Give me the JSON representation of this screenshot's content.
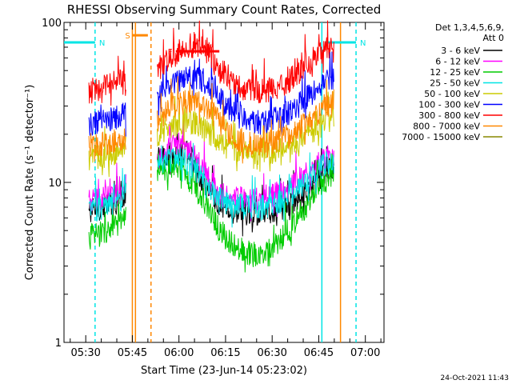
{
  "chart_data": {
    "type": "line",
    "title": "RHESSI Observing Summary Count Rates, Corrected",
    "xlabel": "Start Time (23-Jun-14 05:23:02)",
    "ylabel": "Corrected Count Rate (s⁻¹ detector⁻¹)",
    "y_scale": "log",
    "ylim": [
      1,
      100
    ],
    "y_ticks": [
      {
        "value": 1,
        "label": "1"
      },
      {
        "value": 10,
        "label": "10"
      },
      {
        "value": 100,
        "label": "100"
      }
    ],
    "xlim": [
      "05:23",
      "07:06"
    ],
    "x_ticks": [
      "05:30",
      "05:45",
      "06:00",
      "06:15",
      "06:30",
      "06:45",
      "07:00"
    ],
    "legend_header": [
      "Det 1,3,4,5,6,9,",
      "Att 0"
    ],
    "legend_position": "right",
    "series": [
      {
        "name": "3 - 6 keV",
        "color": "#000000",
        "segments": [
          [
            [
              "05:31",
              6.2
            ],
            [
              "05:35",
              6.6
            ],
            [
              "05:38",
              7.0
            ],
            [
              "05:41",
              7.5
            ],
            [
              "05:43",
              8.0
            ]
          ],
          [
            [
              "05:53",
              13
            ],
            [
              "05:56",
              14
            ],
            [
              "05:59",
              13.5
            ],
            [
              "06:02",
              15
            ],
            [
              "06:05",
              12.5
            ],
            [
              "06:08",
              9.0
            ],
            [
              "06:11",
              7.6
            ],
            [
              "06:14",
              6.8
            ],
            [
              "06:18",
              6.2
            ],
            [
              "06:22",
              6.0
            ],
            [
              "06:26",
              6.1
            ],
            [
              "06:30",
              6.3
            ],
            [
              "06:34",
              6.6
            ],
            [
              "06:38",
              7.3
            ],
            [
              "06:42",
              8.6
            ],
            [
              "06:46",
              10.5
            ],
            [
              "06:50",
              12.0
            ]
          ]
        ]
      },
      {
        "name": "6 - 12 keV",
        "color": "#ff00ff",
        "segments": [
          [
            [
              "05:31",
              7.2
            ],
            [
              "05:35",
              7.5
            ],
            [
              "05:38",
              7.9
            ],
            [
              "05:41",
              8.4
            ],
            [
              "05:43",
              9.0
            ]
          ],
          [
            [
              "05:53",
              12.5
            ],
            [
              "05:56",
              15
            ],
            [
              "05:59",
              16.5
            ],
            [
              "06:02",
              16
            ],
            [
              "06:05",
              13.5
            ],
            [
              "06:08",
              11.0
            ],
            [
              "06:11",
              9.0
            ],
            [
              "06:14",
              8.0
            ],
            [
              "06:18",
              7.5
            ],
            [
              "06:22",
              7.4
            ],
            [
              "06:26",
              7.5
            ],
            [
              "06:30",
              7.8
            ],
            [
              "06:34",
              8.5
            ],
            [
              "06:38",
              9.6
            ],
            [
              "06:42",
              11.2
            ],
            [
              "06:46",
              13.0
            ],
            [
              "06:50",
              14.0
            ]
          ]
        ]
      },
      {
        "name": "12 - 25 keV",
        "color": "#00cc00",
        "segments": [
          [
            [
              "05:31",
              4.3
            ],
            [
              "05:35",
              4.6
            ],
            [
              "05:38",
              4.9
            ],
            [
              "05:41",
              5.2
            ],
            [
              "05:43",
              5.6
            ]
          ],
          [
            [
              "05:53",
              10.5
            ],
            [
              "05:56",
              11.5
            ],
            [
              "05:59",
              12.0
            ],
            [
              "06:02",
              11.0
            ],
            [
              "06:05",
              9.0
            ],
            [
              "06:08",
              7.0
            ],
            [
              "06:11",
              5.5
            ],
            [
              "06:14",
              4.5
            ],
            [
              "06:18",
              3.8
            ],
            [
              "06:22",
              3.4
            ],
            [
              "06:26",
              3.4
            ],
            [
              "06:30",
              3.7
            ],
            [
              "06:34",
              4.4
            ],
            [
              "06:38",
              5.6
            ],
            [
              "06:42",
              7.2
            ],
            [
              "06:46",
              9.0
            ],
            [
              "06:50",
              10.5
            ]
          ]
        ]
      },
      {
        "name": "25 - 50 keV",
        "color": "#00e5e5",
        "segments": [
          [
            [
              "05:31",
              6.4
            ],
            [
              "05:35",
              6.6
            ],
            [
              "05:38",
              6.9
            ],
            [
              "05:41",
              7.3
            ],
            [
              "05:43",
              7.8
            ]
          ],
          [
            [
              "05:53",
              12.0
            ],
            [
              "05:56",
              13.0
            ],
            [
              "05:59",
              13.5
            ],
            [
              "06:02",
              13.0
            ],
            [
              "06:05",
              11.5
            ],
            [
              "06:08",
              9.5
            ],
            [
              "06:11",
              8.0
            ],
            [
              "06:14",
              7.2
            ],
            [
              "06:18",
              6.8
            ],
            [
              "06:22",
              6.6
            ],
            [
              "06:26",
              6.6
            ],
            [
              "06:30",
              6.8
            ],
            [
              "06:34",
              7.4
            ],
            [
              "06:38",
              8.5
            ],
            [
              "06:42",
              10.0
            ],
            [
              "06:46",
              12.0
            ],
            [
              "06:50",
              13.0
            ]
          ]
        ]
      },
      {
        "name": "50 - 100 keV",
        "color": "#cccc00",
        "segments": [
          [
            [
              "05:31",
              13.5
            ],
            [
              "05:35",
              13.8
            ],
            [
              "05:38",
              14.2
            ],
            [
              "05:41",
              14.7
            ],
            [
              "05:43",
              15.2
            ]
          ],
          [
            [
              "05:53",
              18.5
            ],
            [
              "05:56",
              20.5
            ],
            [
              "05:59",
              22.0
            ],
            [
              "06:02",
              23.0
            ],
            [
              "06:05",
              22.5
            ],
            [
              "06:08",
              20.5
            ],
            [
              "06:11",
              18.0
            ],
            [
              "06:14",
              16.0
            ],
            [
              "06:18",
              15.0
            ],
            [
              "06:22",
              14.6
            ],
            [
              "06:26",
              14.5
            ],
            [
              "06:30",
              14.8
            ],
            [
              "06:34",
              15.6
            ],
            [
              "06:38",
              17.0
            ],
            [
              "06:42",
              19.0
            ],
            [
              "06:46",
              21.5
            ],
            [
              "06:50",
              24.0
            ]
          ]
        ]
      },
      {
        "name": "100 - 300 keV",
        "color": "#0000ff",
        "segments": [
          [
            [
              "05:31",
              21.5
            ],
            [
              "05:35",
              22.5
            ],
            [
              "05:38",
              23.5
            ],
            [
              "05:41",
              24.5
            ],
            [
              "05:43",
              25.5
            ]
          ],
          [
            [
              "05:53",
              31.0
            ],
            [
              "05:56",
              36.0
            ],
            [
              "05:59",
              40.0
            ],
            [
              "06:02",
              43.0
            ],
            [
              "06:05",
              43.5
            ],
            [
              "06:08",
              41.0
            ],
            [
              "06:11",
              36.0
            ],
            [
              "06:14",
              30.0
            ],
            [
              "06:18",
              25.5
            ],
            [
              "06:22",
              23.0
            ],
            [
              "06:26",
              22.5
            ],
            [
              "06:30",
              23.0
            ],
            [
              "06:34",
              25.0
            ],
            [
              "06:38",
              28.0
            ],
            [
              "06:42",
              33.0
            ],
            [
              "06:46",
              38.0
            ],
            [
              "06:50",
              43.0
            ]
          ]
        ]
      },
      {
        "name": "300 - 800 keV",
        "color": "#ff0000",
        "segments": [
          [
            [
              "05:31",
              35.0
            ],
            [
              "05:35",
              36.5
            ],
            [
              "05:38",
              38.5
            ],
            [
              "05:41",
              41.0
            ],
            [
              "05:43",
              43.0
            ]
          ],
          [
            [
              "05:53",
              44.0
            ],
            [
              "05:56",
              53.0
            ],
            [
              "05:59",
              60.0
            ],
            [
              "06:02",
              65.0
            ],
            [
              "06:05",
              67.0
            ],
            [
              "06:08",
              64.0
            ],
            [
              "06:11",
              56.0
            ],
            [
              "06:14",
              47.0
            ],
            [
              "06:18",
              39.0
            ],
            [
              "06:22",
              35.5
            ],
            [
              "06:26",
              35.0
            ],
            [
              "06:30",
              36.0
            ],
            [
              "06:34",
              39.0
            ],
            [
              "06:38",
              45.0
            ],
            [
              "06:42",
              53.0
            ],
            [
              "06:46",
              62.0
            ],
            [
              "06:50",
              72.0
            ]
          ]
        ]
      },
      {
        "name": "800 - 7000 keV",
        "color": "#ff8800",
        "segments": [
          [
            [
              "05:31",
              16.0
            ],
            [
              "05:35",
              16.3
            ],
            [
              "05:38",
              16.8
            ],
            [
              "05:41",
              17.4
            ],
            [
              "05:43",
              18.0
            ]
          ],
          [
            [
              "05:53",
              23.0
            ],
            [
              "05:56",
              26.0
            ],
            [
              "05:59",
              28.5
            ],
            [
              "06:02",
              30.5
            ],
            [
              "06:05",
              31.0
            ],
            [
              "06:08",
              29.0
            ],
            [
              "06:11",
              25.0
            ],
            [
              "06:14",
              21.0
            ],
            [
              "06:18",
              18.0
            ],
            [
              "06:22",
              16.8
            ],
            [
              "06:26",
              16.5
            ],
            [
              "06:30",
              16.8
            ],
            [
              "06:34",
              18.0
            ],
            [
              "06:38",
              20.0
            ],
            [
              "06:42",
              23.0
            ],
            [
              "06:46",
              26.5
            ],
            [
              "06:50",
              30.0
            ]
          ]
        ]
      },
      {
        "name": "7000 - 15000 keV",
        "color": "#888800",
        "segments": []
      }
    ],
    "annotations": [
      {
        "label": "N",
        "color": "#00e5e5",
        "y": 75,
        "start": "05:23",
        "end": "05:33"
      },
      {
        "label": "N",
        "color": "#00e5e5",
        "y": 75,
        "start": "06:47",
        "end": "06:57"
      },
      {
        "label": "S",
        "color": "#ff8800",
        "y": 83,
        "start": "05:45",
        "end": "05:50"
      },
      {
        "label": "F",
        "color": "#ff0000",
        "y": 66,
        "start": "05:59",
        "end": "06:13"
      }
    ],
    "mode_lines": [
      {
        "time": "05:33",
        "color": "#00e5e5",
        "style": "dashed"
      },
      {
        "time": "06:46",
        "color": "#00e5e5",
        "style": "solid"
      },
      {
        "time": "06:57",
        "color": "#00e5e5",
        "style": "dashed"
      },
      {
        "time": "05:45",
        "color": "#ff8800",
        "style": "solid"
      },
      {
        "time": "05:46",
        "color": "#ff8800",
        "style": "solid"
      },
      {
        "time": "05:51",
        "color": "#ff8800",
        "style": "dashed"
      },
      {
        "time": "06:52",
        "color": "#ff8800",
        "style": "solid"
      }
    ]
  },
  "footer": {
    "timestamp": "24-Oct-2021 11:43"
  }
}
